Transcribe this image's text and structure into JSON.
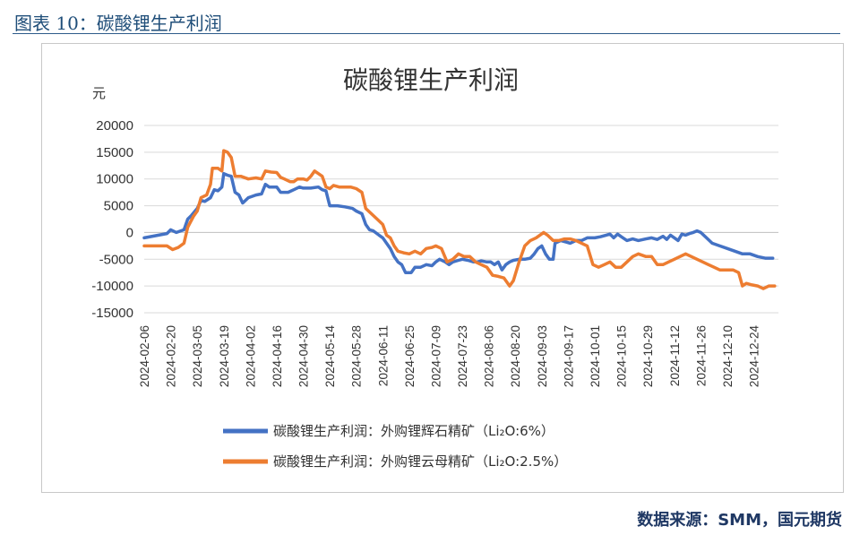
{
  "caption": "图表 10：碳酸锂生产利润",
  "source": "数据来源：SMM，国元期货",
  "chart_data": {
    "type": "line",
    "title": "碳酸锂生产利润",
    "ylabel": "元",
    "ylim": [
      -15000,
      20000
    ],
    "yticks": [
      20000,
      15000,
      10000,
      5000,
      0,
      -5000,
      -10000,
      -15000
    ],
    "xticks": [
      "2024-02-06",
      "2024-02-20",
      "2024-03-05",
      "2024-03-19",
      "2024-04-02",
      "2024-04-16",
      "2024-04-30",
      "2024-05-14",
      "2024-05-28",
      "2024-06-11",
      "2024-06-25",
      "2024-07-09",
      "2024-07-23",
      "2024-08-06",
      "2024-08-20",
      "2024-09-03",
      "2024-09-17",
      "2024-10-01",
      "2024-10-15",
      "2024-10-29",
      "2024-11-12",
      "2024-11-26",
      "2024-12-10",
      "2024-12-24"
    ],
    "xrange": [
      "2024-02-06",
      "2025-01-06"
    ],
    "grid": "horizontal",
    "legend_position": "bottom",
    "series": [
      {
        "name": "碳酸锂生产利润：外购锂辉石精矿（Li₂O:6%）",
        "color": "#4472c4",
        "points": [
          [
            "2024-02-06",
            -1000
          ],
          [
            "2024-02-12",
            -600
          ],
          [
            "2024-02-18",
            -200
          ],
          [
            "2024-02-20",
            500
          ],
          [
            "2024-02-23",
            0
          ],
          [
            "2024-02-27",
            500
          ],
          [
            "2024-02-29",
            2500
          ],
          [
            "2024-03-02",
            3200
          ],
          [
            "2024-03-05",
            4500
          ],
          [
            "2024-03-07",
            6000
          ],
          [
            "2024-03-09",
            5800
          ],
          [
            "2024-03-12",
            6500
          ],
          [
            "2024-03-14",
            8000
          ],
          [
            "2024-03-16",
            7800
          ],
          [
            "2024-03-18",
            8500
          ],
          [
            "2024-03-19",
            11000
          ],
          [
            "2024-03-21",
            10700
          ],
          [
            "2024-03-23",
            10500
          ],
          [
            "2024-03-25",
            7500
          ],
          [
            "2024-03-27",
            7000
          ],
          [
            "2024-03-29",
            5500
          ],
          [
            "2024-04-01",
            6500
          ],
          [
            "2024-04-05",
            7000
          ],
          [
            "2024-04-08",
            7200
          ],
          [
            "2024-04-10",
            9000
          ],
          [
            "2024-04-12",
            8500
          ],
          [
            "2024-04-16",
            8500
          ],
          [
            "2024-04-18",
            7500
          ],
          [
            "2024-04-22",
            7500
          ],
          [
            "2024-04-25",
            8000
          ],
          [
            "2024-04-28",
            8500
          ],
          [
            "2024-04-30",
            8300
          ],
          [
            "2024-05-04",
            8300
          ],
          [
            "2024-05-08",
            8500
          ],
          [
            "2024-05-10",
            8000
          ],
          [
            "2024-05-12",
            7800
          ],
          [
            "2024-05-14",
            5000
          ],
          [
            "2024-05-18",
            5000
          ],
          [
            "2024-05-22",
            4800
          ],
          [
            "2024-05-26",
            4500
          ],
          [
            "2024-05-28",
            4000
          ],
          [
            "2024-05-31",
            3500
          ],
          [
            "2024-06-02",
            1500
          ],
          [
            "2024-06-04",
            500
          ],
          [
            "2024-06-06",
            300
          ],
          [
            "2024-06-09",
            -500
          ],
          [
            "2024-06-11",
            -1000
          ],
          [
            "2024-06-13",
            -2000
          ],
          [
            "2024-06-15",
            -3000
          ],
          [
            "2024-06-17",
            -4500
          ],
          [
            "2024-06-19",
            -5500
          ],
          [
            "2024-06-21",
            -6000
          ],
          [
            "2024-06-23",
            -7500
          ],
          [
            "2024-06-26",
            -7500
          ],
          [
            "2024-06-28",
            -6500
          ],
          [
            "2024-07-01",
            -6500
          ],
          [
            "2024-07-04",
            -6000
          ],
          [
            "2024-07-07",
            -6200
          ],
          [
            "2024-07-09",
            -5500
          ],
          [
            "2024-07-11",
            -5000
          ],
          [
            "2024-07-14",
            -5500
          ],
          [
            "2024-07-16",
            -6000
          ],
          [
            "2024-07-18",
            -5500
          ],
          [
            "2024-07-21",
            -5200
          ],
          [
            "2024-07-23",
            -5000
          ],
          [
            "2024-07-26",
            -5200
          ],
          [
            "2024-07-29",
            -5500
          ],
          [
            "2024-07-31",
            -5500
          ],
          [
            "2024-08-02",
            -5300
          ],
          [
            "2024-08-05",
            -5500
          ],
          [
            "2024-08-07",
            -5500
          ],
          [
            "2024-08-09",
            -6000
          ],
          [
            "2024-08-11",
            -5500
          ],
          [
            "2024-08-13",
            -7000
          ],
          [
            "2024-08-15",
            -6000
          ],
          [
            "2024-08-17",
            -5500
          ],
          [
            "2024-08-19",
            -5200
          ],
          [
            "2024-08-22",
            -5000
          ],
          [
            "2024-08-25",
            -5000
          ],
          [
            "2024-08-28",
            -4800
          ],
          [
            "2024-08-30",
            -4000
          ],
          [
            "2024-09-01",
            -3000
          ],
          [
            "2024-09-03",
            -2500
          ],
          [
            "2024-09-05",
            -4000
          ],
          [
            "2024-09-07",
            -5000
          ],
          [
            "2024-09-09",
            -5000
          ],
          [
            "2024-09-10",
            -2000
          ],
          [
            "2024-09-13",
            -1500
          ],
          [
            "2024-09-16",
            -1800
          ],
          [
            "2024-09-18",
            -2000
          ],
          [
            "2024-09-21",
            -1500
          ],
          [
            "2024-09-24",
            -1500
          ],
          [
            "2024-09-27",
            -1000
          ],
          [
            "2024-10-01",
            -1000
          ],
          [
            "2024-10-04",
            -800
          ],
          [
            "2024-10-07",
            -500
          ],
          [
            "2024-10-09",
            -300
          ],
          [
            "2024-10-11",
            -1000
          ],
          [
            "2024-10-13",
            -300
          ],
          [
            "2024-10-15",
            -800
          ],
          [
            "2024-10-18",
            -1500
          ],
          [
            "2024-10-21",
            -1200
          ],
          [
            "2024-10-24",
            -1500
          ],
          [
            "2024-10-28",
            -1200
          ],
          [
            "2024-10-31",
            -1000
          ],
          [
            "2024-11-03",
            -1300
          ],
          [
            "2024-11-06",
            -700
          ],
          [
            "2024-11-08",
            -1300
          ],
          [
            "2024-11-10",
            -500
          ],
          [
            "2024-11-12",
            -1000
          ],
          [
            "2024-11-14",
            -1500
          ],
          [
            "2024-11-16",
            -300
          ],
          [
            "2024-11-18",
            -500
          ],
          [
            "2024-11-20",
            -200
          ],
          [
            "2024-11-22",
            0
          ],
          [
            "2024-11-24",
            300
          ],
          [
            "2024-11-26",
            0
          ],
          [
            "2024-11-29",
            -1000
          ],
          [
            "2024-12-02",
            -2000
          ],
          [
            "2024-12-06",
            -2500
          ],
          [
            "2024-12-10",
            -3000
          ],
          [
            "2024-12-14",
            -3500
          ],
          [
            "2024-12-18",
            -4000
          ],
          [
            "2024-12-22",
            -4000
          ],
          [
            "2024-12-26",
            -4500
          ],
          [
            "2024-12-30",
            -4800
          ],
          [
            "2025-01-03",
            -4800
          ]
        ]
      },
      {
        "name": "碳酸锂生产利润：外购锂云母精矿（Li₂O:2.5%）",
        "color": "#ed7d31",
        "points": [
          [
            "2024-02-06",
            -2500
          ],
          [
            "2024-02-12",
            -2500
          ],
          [
            "2024-02-18",
            -2500
          ],
          [
            "2024-02-21",
            -3200
          ],
          [
            "2024-02-24",
            -2800
          ],
          [
            "2024-02-27",
            -2000
          ],
          [
            "2024-02-29",
            1000
          ],
          [
            "2024-03-03",
            3000
          ],
          [
            "2024-03-05",
            4000
          ],
          [
            "2024-03-07",
            6500
          ],
          [
            "2024-03-10",
            7000
          ],
          [
            "2024-03-12",
            9000
          ],
          [
            "2024-03-13",
            12000
          ],
          [
            "2024-03-16",
            12000
          ],
          [
            "2024-03-18",
            11500
          ],
          [
            "2024-03-19",
            15300
          ],
          [
            "2024-03-21",
            15000
          ],
          [
            "2024-03-23",
            14000
          ],
          [
            "2024-03-25",
            10500
          ],
          [
            "2024-03-28",
            10500
          ],
          [
            "2024-04-01",
            10000
          ],
          [
            "2024-04-05",
            10200
          ],
          [
            "2024-04-08",
            10000
          ],
          [
            "2024-04-10",
            11500
          ],
          [
            "2024-04-13",
            11300
          ],
          [
            "2024-04-16",
            11200
          ],
          [
            "2024-04-18",
            10300
          ],
          [
            "2024-04-20",
            10000
          ],
          [
            "2024-04-23",
            9500
          ],
          [
            "2024-04-25",
            9500
          ],
          [
            "2024-04-27",
            10000
          ],
          [
            "2024-04-30",
            10000
          ],
          [
            "2024-05-02",
            9800
          ],
          [
            "2024-05-04",
            10500
          ],
          [
            "2024-05-06",
            11500
          ],
          [
            "2024-05-08",
            11000
          ],
          [
            "2024-05-10",
            10500
          ],
          [
            "2024-05-12",
            8500
          ],
          [
            "2024-05-14",
            8200
          ],
          [
            "2024-05-16",
            8800
          ],
          [
            "2024-05-19",
            8500
          ],
          [
            "2024-05-22",
            8500
          ],
          [
            "2024-05-25",
            8500
          ],
          [
            "2024-05-28",
            8200
          ],
          [
            "2024-05-31",
            7500
          ],
          [
            "2024-06-02",
            4500
          ],
          [
            "2024-06-05",
            3500
          ],
          [
            "2024-06-08",
            2500
          ],
          [
            "2024-06-11",
            1500
          ],
          [
            "2024-06-13",
            -500
          ],
          [
            "2024-06-15",
            -1000
          ],
          [
            "2024-06-17",
            -2500
          ],
          [
            "2024-06-19",
            -3500
          ],
          [
            "2024-06-22",
            -3800
          ],
          [
            "2024-06-25",
            -4000
          ],
          [
            "2024-06-28",
            -3500
          ],
          [
            "2024-07-01",
            -4000
          ],
          [
            "2024-07-04",
            -3000
          ],
          [
            "2024-07-07",
            -2800
          ],
          [
            "2024-07-09",
            -2500
          ],
          [
            "2024-07-12",
            -3000
          ],
          [
            "2024-07-15",
            -5500
          ],
          [
            "2024-07-18",
            -5000
          ],
          [
            "2024-07-21",
            -4000
          ],
          [
            "2024-07-24",
            -4500
          ],
          [
            "2024-07-27",
            -4500
          ],
          [
            "2024-07-30",
            -5500
          ],
          [
            "2024-08-02",
            -6000
          ],
          [
            "2024-08-05",
            -6500
          ],
          [
            "2024-08-08",
            -8000
          ],
          [
            "2024-08-11",
            -8200
          ],
          [
            "2024-08-14",
            -8500
          ],
          [
            "2024-08-17",
            -10000
          ],
          [
            "2024-08-19",
            -9000
          ],
          [
            "2024-08-22",
            -5500
          ],
          [
            "2024-08-25",
            -2500
          ],
          [
            "2024-08-28",
            -1500
          ],
          [
            "2024-08-31",
            -1000
          ],
          [
            "2024-09-02",
            -500
          ],
          [
            "2024-09-04",
            0
          ],
          [
            "2024-09-06",
            -500
          ],
          [
            "2024-09-09",
            -1500
          ],
          [
            "2024-09-12",
            -1500
          ],
          [
            "2024-09-15",
            -1200
          ],
          [
            "2024-09-18",
            -1200
          ],
          [
            "2024-09-21",
            -1500
          ],
          [
            "2024-09-24",
            -2000
          ],
          [
            "2024-09-27",
            -2500
          ],
          [
            "2024-09-30",
            -6000
          ],
          [
            "2024-10-03",
            -6500
          ],
          [
            "2024-10-06",
            -6000
          ],
          [
            "2024-10-09",
            -5500
          ],
          [
            "2024-10-12",
            -6500
          ],
          [
            "2024-10-15",
            -6500
          ],
          [
            "2024-10-18",
            -5500
          ],
          [
            "2024-10-21",
            -4500
          ],
          [
            "2024-10-24",
            -4000
          ],
          [
            "2024-10-28",
            -4500
          ],
          [
            "2024-10-31",
            -4500
          ],
          [
            "2024-11-03",
            -6000
          ],
          [
            "2024-11-06",
            -6000
          ],
          [
            "2024-11-09",
            -5500
          ],
          [
            "2024-11-12",
            -5000
          ],
          [
            "2024-11-15",
            -4500
          ],
          [
            "2024-11-18",
            -4000
          ],
          [
            "2024-11-21",
            -4500
          ],
          [
            "2024-11-24",
            -5000
          ],
          [
            "2024-11-27",
            -5500
          ],
          [
            "2024-11-30",
            -6000
          ],
          [
            "2024-12-03",
            -6500
          ],
          [
            "2024-12-06",
            -7000
          ],
          [
            "2024-12-09",
            -7000
          ],
          [
            "2024-12-13",
            -7000
          ],
          [
            "2024-12-16",
            -7500
          ],
          [
            "2024-12-18",
            -10000
          ],
          [
            "2024-12-20",
            -9500
          ],
          [
            "2024-12-23",
            -9800
          ],
          [
            "2024-12-26",
            -10000
          ],
          [
            "2024-12-29",
            -10500
          ],
          [
            "2025-01-01",
            -10000
          ],
          [
            "2025-01-04",
            -10000
          ]
        ]
      }
    ]
  }
}
